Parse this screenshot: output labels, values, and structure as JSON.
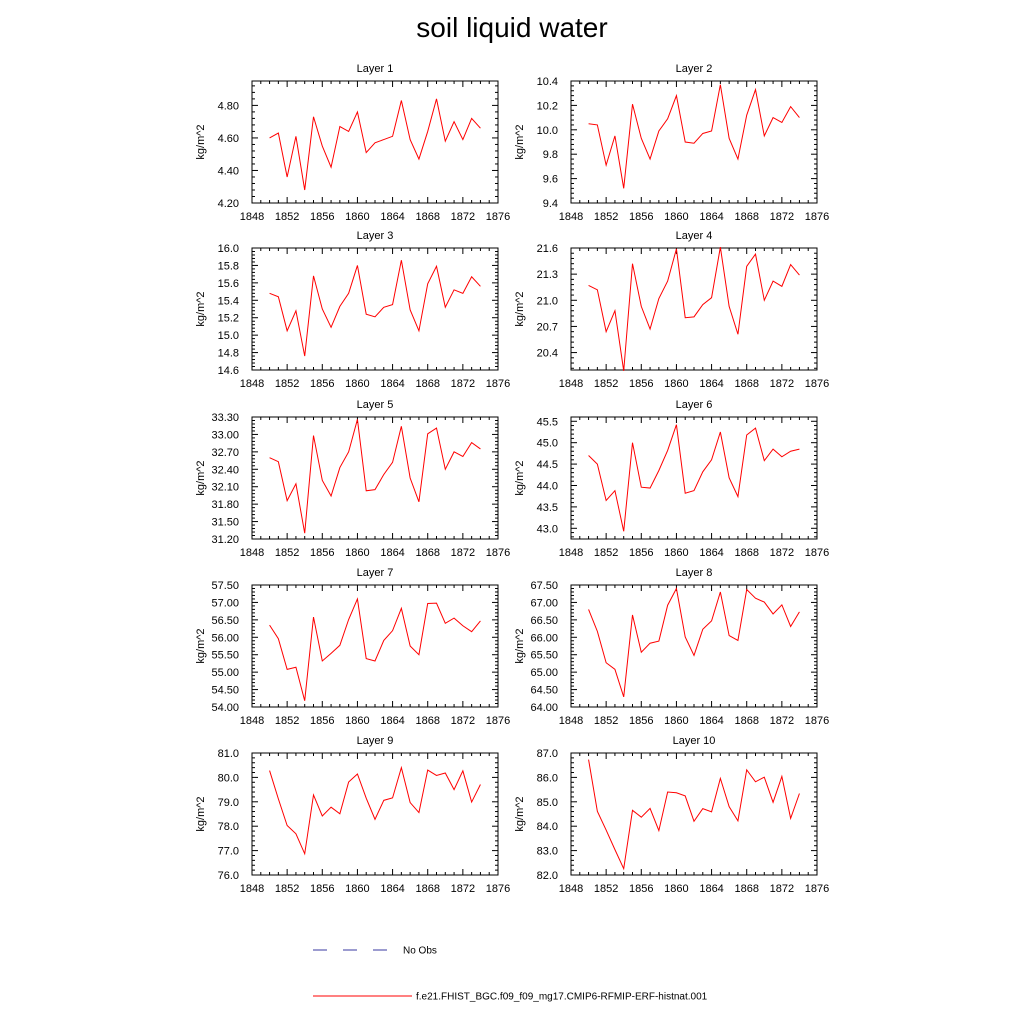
{
  "page": {
    "title": "soil liquid water"
  },
  "legend": {
    "obs_label": "No Obs",
    "obs_color": "#3a3aa0",
    "model_label": "f.e21.FHIST_BGC.f09_f09_mg17.CMIP6-RFMIP-ERF-histnat.001",
    "model_color": "#ff0000"
  },
  "chart_data": [
    {
      "type": "line",
      "title": "Layer 1",
      "ylabel": "kg/m^2",
      "xlim": [
        1848,
        1876
      ],
      "xticks": [
        1848,
        1852,
        1856,
        1860,
        1864,
        1868,
        1872,
        1876
      ],
      "ylim": [
        4.2,
        4.95
      ],
      "yticks": [
        4.2,
        4.4,
        4.6,
        4.8
      ],
      "ytick_decimals": 2,
      "series": [
        {
          "x": [
            1850,
            1851,
            1852,
            1853,
            1854,
            1855,
            1856,
            1857,
            1858,
            1859,
            1860,
            1861,
            1862,
            1863,
            1864,
            1865,
            1866,
            1867,
            1868,
            1869,
            1870,
            1871,
            1872,
            1873,
            1874
          ],
          "values": [
            4.6,
            4.63,
            4.36,
            4.61,
            4.28,
            4.73,
            4.55,
            4.42,
            4.67,
            4.64,
            4.76,
            4.51,
            4.57,
            4.59,
            4.61,
            4.83,
            4.59,
            4.47,
            4.64,
            4.84,
            4.58,
            4.7,
            4.59,
            4.72,
            4.66
          ]
        }
      ]
    },
    {
      "type": "line",
      "title": "Layer 2",
      "ylabel": "kg/m^2",
      "xlim": [
        1848,
        1876
      ],
      "xticks": [
        1848,
        1852,
        1856,
        1860,
        1864,
        1868,
        1872,
        1876
      ],
      "ylim": [
        9.4,
        10.4
      ],
      "yticks": [
        9.4,
        9.6,
        9.8,
        10.0,
        10.2,
        10.4
      ],
      "ytick_decimals": 1,
      "series": [
        {
          "x": [
            1850,
            1851,
            1852,
            1853,
            1854,
            1855,
            1856,
            1857,
            1858,
            1859,
            1860,
            1861,
            1862,
            1863,
            1864,
            1865,
            1866,
            1867,
            1868,
            1869,
            1870,
            1871,
            1872,
            1873,
            1874
          ],
          "values": [
            10.05,
            10.04,
            9.71,
            9.95,
            9.52,
            10.21,
            9.93,
            9.76,
            9.99,
            10.09,
            10.28,
            9.9,
            9.89,
            9.97,
            9.99,
            10.37,
            9.93,
            9.76,
            10.12,
            10.33,
            9.95,
            10.1,
            10.06,
            10.19,
            10.1
          ]
        }
      ]
    },
    {
      "type": "line",
      "title": "Layer 3",
      "ylabel": "kg/m^2",
      "xlim": [
        1848,
        1876
      ],
      "xticks": [
        1848,
        1852,
        1856,
        1860,
        1864,
        1868,
        1872,
        1876
      ],
      "ylim": [
        14.6,
        16.0
      ],
      "yticks": [
        14.6,
        14.8,
        15.0,
        15.2,
        15.4,
        15.6,
        15.8,
        16.0
      ],
      "ytick_decimals": 1,
      "series": [
        {
          "x": [
            1850,
            1851,
            1852,
            1853,
            1854,
            1855,
            1856,
            1857,
            1858,
            1859,
            1860,
            1861,
            1862,
            1863,
            1864,
            1865,
            1866,
            1867,
            1868,
            1869,
            1870,
            1871,
            1872,
            1873,
            1874
          ],
          "values": [
            15.48,
            15.44,
            15.05,
            15.28,
            14.76,
            15.68,
            15.3,
            15.09,
            15.33,
            15.48,
            15.8,
            15.24,
            15.21,
            15.32,
            15.35,
            15.86,
            15.29,
            15.05,
            15.59,
            15.79,
            15.32,
            15.52,
            15.48,
            15.67,
            15.56
          ]
        }
      ]
    },
    {
      "type": "line",
      "title": "Layer 4",
      "ylabel": "kg/m^2",
      "xlim": [
        1848,
        1876
      ],
      "xticks": [
        1848,
        1852,
        1856,
        1860,
        1864,
        1868,
        1872,
        1876
      ],
      "ylim": [
        20.2,
        21.6
      ],
      "yticks": [
        20.4,
        20.7,
        21.0,
        21.3,
        21.6
      ],
      "ytick_decimals": 1,
      "series": [
        {
          "x": [
            1850,
            1851,
            1852,
            1853,
            1854,
            1855,
            1856,
            1857,
            1858,
            1859,
            1860,
            1861,
            1862,
            1863,
            1864,
            1865,
            1866,
            1867,
            1868,
            1869,
            1870,
            1871,
            1872,
            1873,
            1874
          ],
          "values": [
            21.17,
            21.12,
            20.64,
            20.88,
            20.19,
            21.42,
            20.93,
            20.67,
            21.02,
            21.22,
            21.59,
            20.8,
            20.81,
            20.95,
            21.03,
            21.61,
            20.93,
            20.61,
            21.39,
            21.53,
            21.0,
            21.22,
            21.16,
            21.41,
            21.29
          ]
        }
      ]
    },
    {
      "type": "line",
      "title": "Layer 5",
      "ylabel": "kg/m^2",
      "xlim": [
        1848,
        1876
      ],
      "xticks": [
        1848,
        1852,
        1856,
        1860,
        1864,
        1868,
        1872,
        1876
      ],
      "ylim": [
        31.2,
        33.3
      ],
      "yticks": [
        31.2,
        31.5,
        31.8,
        32.1,
        32.4,
        32.7,
        33.0,
        33.3
      ],
      "ytick_decimals": 2,
      "series": [
        {
          "x": [
            1850,
            1851,
            1852,
            1853,
            1854,
            1855,
            1856,
            1857,
            1858,
            1859,
            1860,
            1861,
            1862,
            1863,
            1864,
            1865,
            1866,
            1867,
            1868,
            1869,
            1870,
            1871,
            1872,
            1873,
            1874
          ],
          "values": [
            32.6,
            32.53,
            31.86,
            32.15,
            31.3,
            32.98,
            32.21,
            31.94,
            32.43,
            32.7,
            33.26,
            32.03,
            32.05,
            32.31,
            32.52,
            33.14,
            32.25,
            31.84,
            33.01,
            33.11,
            32.4,
            32.7,
            32.62,
            32.86,
            32.75
          ]
        }
      ]
    },
    {
      "type": "line",
      "title": "Layer 6",
      "ylabel": "kg/m^2",
      "xlim": [
        1848,
        1876
      ],
      "xticks": [
        1848,
        1852,
        1856,
        1860,
        1864,
        1868,
        1872,
        1876
      ],
      "ylim": [
        42.75,
        45.6
      ],
      "yticks": [
        43.0,
        43.5,
        44.0,
        44.5,
        45.0,
        45.5
      ],
      "ytick_decimals": 1,
      "series": [
        {
          "x": [
            1850,
            1851,
            1852,
            1853,
            1854,
            1855,
            1856,
            1857,
            1858,
            1859,
            1860,
            1861,
            1862,
            1863,
            1864,
            1865,
            1866,
            1867,
            1868,
            1869,
            1870,
            1871,
            1872,
            1873,
            1874
          ],
          "values": [
            44.7,
            44.5,
            43.65,
            43.88,
            42.93,
            45.0,
            43.96,
            43.94,
            44.35,
            44.82,
            45.42,
            43.82,
            43.88,
            44.32,
            44.6,
            45.25,
            44.18,
            43.74,
            45.18,
            45.34,
            44.58,
            44.85,
            44.67,
            44.8,
            44.85
          ]
        }
      ]
    },
    {
      "type": "line",
      "title": "Layer 7",
      "ylabel": "kg/m^2",
      "xlim": [
        1848,
        1876
      ],
      "xticks": [
        1848,
        1852,
        1856,
        1860,
        1864,
        1868,
        1872,
        1876
      ],
      "ylim": [
        54.0,
        57.5
      ],
      "yticks": [
        54.0,
        54.5,
        55.0,
        55.5,
        56.0,
        56.5,
        57.0,
        57.5
      ],
      "ytick_decimals": 2,
      "series": [
        {
          "x": [
            1850,
            1851,
            1852,
            1853,
            1854,
            1855,
            1856,
            1857,
            1858,
            1859,
            1860,
            1861,
            1862,
            1863,
            1864,
            1865,
            1866,
            1867,
            1868,
            1869,
            1870,
            1871,
            1872,
            1873,
            1874
          ],
          "values": [
            56.35,
            55.96,
            55.08,
            55.14,
            54.18,
            56.58,
            55.32,
            55.54,
            55.77,
            56.51,
            57.1,
            55.39,
            55.32,
            55.91,
            56.19,
            56.83,
            55.75,
            55.5,
            56.97,
            56.98,
            56.4,
            56.55,
            56.33,
            56.16,
            56.47
          ]
        }
      ]
    },
    {
      "type": "line",
      "title": "Layer 8",
      "ylabel": "kg/m^2",
      "xlim": [
        1848,
        1876
      ],
      "xticks": [
        1848,
        1852,
        1856,
        1860,
        1864,
        1868,
        1872,
        1876
      ],
      "ylim": [
        64.0,
        67.5
      ],
      "yticks": [
        64.0,
        64.5,
        65.0,
        65.5,
        66.0,
        66.5,
        67.0,
        67.5
      ],
      "ytick_decimals": 2,
      "series": [
        {
          "x": [
            1850,
            1851,
            1852,
            1853,
            1854,
            1855,
            1856,
            1857,
            1858,
            1859,
            1860,
            1861,
            1862,
            1863,
            1864,
            1865,
            1866,
            1867,
            1868,
            1869,
            1870,
            1871,
            1872,
            1873,
            1874
          ],
          "values": [
            66.8,
            66.17,
            65.27,
            65.08,
            64.29,
            66.64,
            65.57,
            65.83,
            65.89,
            66.92,
            67.4,
            66.01,
            65.48,
            66.23,
            66.47,
            67.3,
            66.05,
            65.91,
            67.37,
            67.12,
            67.01,
            66.67,
            66.93,
            66.31,
            66.73
          ]
        }
      ]
    },
    {
      "type": "line",
      "title": "Layer 9",
      "ylabel": "kg/m^2",
      "xlim": [
        1848,
        1876
      ],
      "xticks": [
        1848,
        1852,
        1856,
        1860,
        1864,
        1868,
        1872,
        1876
      ],
      "ylim": [
        76.0,
        81.0
      ],
      "yticks": [
        76.0,
        77.0,
        78.0,
        79.0,
        80.0,
        81.0
      ],
      "ytick_decimals": 1,
      "series": [
        {
          "x": [
            1850,
            1851,
            1852,
            1853,
            1854,
            1855,
            1856,
            1857,
            1858,
            1859,
            1860,
            1861,
            1862,
            1863,
            1864,
            1865,
            1866,
            1867,
            1868,
            1869,
            1870,
            1871,
            1872,
            1873,
            1874
          ],
          "values": [
            80.28,
            79.12,
            78.03,
            77.69,
            76.87,
            79.28,
            78.42,
            78.78,
            78.51,
            79.81,
            80.14,
            79.15,
            78.28,
            79.06,
            79.16,
            80.4,
            78.97,
            78.56,
            80.3,
            80.08,
            80.18,
            79.5,
            80.27,
            78.99,
            79.71
          ]
        }
      ]
    },
    {
      "type": "line",
      "title": "Layer 10",
      "ylabel": "kg/m^2",
      "xlim": [
        1848,
        1876
      ],
      "xticks": [
        1848,
        1852,
        1856,
        1860,
        1864,
        1868,
        1872,
        1876
      ],
      "ylim": [
        82.0,
        87.0
      ],
      "yticks": [
        82.0,
        83.0,
        84.0,
        85.0,
        86.0,
        87.0
      ],
      "ytick_decimals": 1,
      "series": [
        {
          "x": [
            1850,
            1851,
            1852,
            1853,
            1854,
            1855,
            1856,
            1857,
            1858,
            1859,
            1860,
            1861,
            1862,
            1863,
            1864,
            1865,
            1866,
            1867,
            1868,
            1869,
            1870,
            1871,
            1872,
            1873,
            1874
          ],
          "values": [
            86.73,
            84.61,
            83.84,
            83.04,
            82.26,
            84.65,
            84.37,
            84.73,
            83.82,
            85.4,
            85.37,
            85.24,
            84.2,
            84.72,
            84.59,
            85.96,
            84.8,
            84.22,
            86.31,
            85.82,
            86.01,
            84.98,
            86.04,
            84.32,
            85.34
          ]
        }
      ]
    }
  ]
}
